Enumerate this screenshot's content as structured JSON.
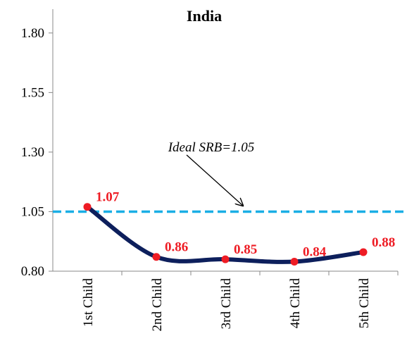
{
  "chart_data": {
    "type": "line",
    "title": "India",
    "categories": [
      "1st Child",
      "2nd Child",
      "3rd Child",
      "4th Child",
      "5th Child"
    ],
    "series": [
      {
        "name": "India",
        "color": "#0d1f5c",
        "marker_color": "#ee1c24",
        "values": [
          1.07,
          0.86,
          0.85,
          0.84,
          0.88
        ]
      }
    ],
    "ylim": [
      0.8,
      1.9
    ],
    "yticks": [
      {
        "value": 0.8,
        "label": "0.80"
      },
      1.05,
      {
        "value": 1.3,
        "label": "1.30"
      },
      1.55,
      {
        "value": 1.8,
        "label": "1.80"
      }
    ],
    "reference_line": {
      "value": 1.05,
      "label": "Ideal SRB=1.05",
      "color": "#1aaee5"
    },
    "grid": false
  }
}
